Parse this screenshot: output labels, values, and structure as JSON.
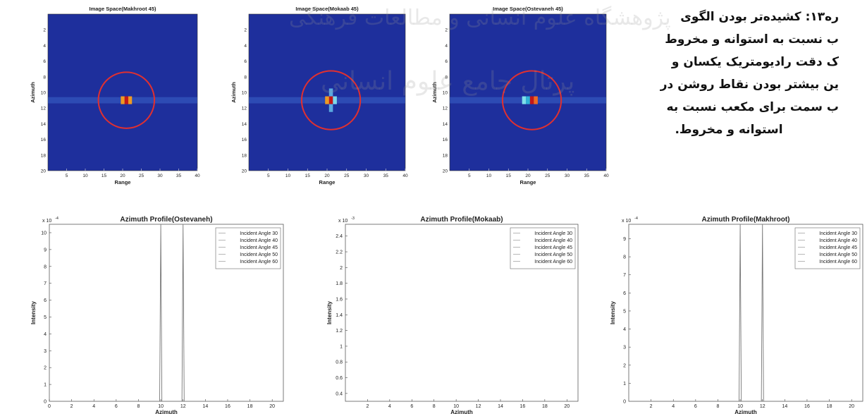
{
  "caption": {
    "lines": [
      "ره۱۳: کشیده‌تر بودن الگوی",
      "ب نسبت به استوانه و مخروط",
      "ک دقت رادیومتریک یکسان و",
      "ین بیشتر بودن نقاط روشن در",
      "ب سمت برای مکعب نسبت به",
      "استوانه و مخروط."
    ]
  },
  "watermark": {
    "top": "پژوهشگاه علوم انسانی و مطالعات فرهنگی",
    "middle": "پرتال جامع علوم انسانی"
  },
  "chart_data": [
    {
      "type": "heatmap",
      "title": "Image Space(Makhroot 45)",
      "xlabel": "Range",
      "ylabel": "Azimuth",
      "xlim": [
        0,
        40
      ],
      "ylim": [
        0,
        20
      ],
      "xticks": [
        "5",
        "10",
        "15",
        "20",
        "25",
        "30",
        "35",
        "40"
      ],
      "yticks": [
        "2",
        "4",
        "6",
        "8",
        "10",
        "12",
        "14",
        "16",
        "18",
        "20"
      ],
      "background_color": "#1e2f9c",
      "circle": {
        "cx": 21,
        "cy": 11,
        "r": 7.5,
        "color": "#e03030"
      },
      "cells": [
        {
          "x": 21,
          "y": 11,
          "color": "#c41717"
        },
        {
          "x": 20,
          "y": 11,
          "color": "#ef9a22"
        },
        {
          "x": 22,
          "y": 11,
          "color": "#ef9a22"
        }
      ]
    },
    {
      "type": "heatmap",
      "title": "Image Space(Mokaab 45)",
      "xlabel": "Range",
      "ylabel": "Azimuth",
      "xlim": [
        0,
        40
      ],
      "ylim": [
        0,
        20
      ],
      "xticks": [
        "5",
        "10",
        "15",
        "20",
        "25",
        "30",
        "35",
        "40"
      ],
      "yticks": [
        "2",
        "4",
        "6",
        "8",
        "10",
        "12",
        "14",
        "16",
        "18",
        "20"
      ],
      "background_color": "#1e2f9c",
      "circle": {
        "cx": 21,
        "cy": 11,
        "r": 7.5,
        "color": "#e03030"
      },
      "cells": [
        {
          "x": 21,
          "y": 11,
          "color": "#c41717"
        },
        {
          "x": 20,
          "y": 11,
          "color": "#ef9a22"
        },
        {
          "x": 22,
          "y": 11,
          "color": "#7fd9ea"
        },
        {
          "x": 21,
          "y": 10,
          "color": "#5aa8e0"
        },
        {
          "x": 21,
          "y": 12,
          "color": "#5aa8e0"
        }
      ]
    },
    {
      "type": "heatmap",
      "title": "Image Space(Ostevaneh 45)",
      "xlabel": "Range",
      "ylabel": "Azimuth",
      "xlim": [
        0,
        40
      ],
      "ylim": [
        0,
        20
      ],
      "xticks": [
        "5",
        "10",
        "15",
        "20",
        "25",
        "30",
        "35",
        "40"
      ],
      "yticks": [
        "2",
        "4",
        "6",
        "8",
        "10",
        "12",
        "14",
        "16",
        "18",
        "20"
      ],
      "background_color": "#1e2f9c",
      "circle": {
        "cx": 21,
        "cy": 11,
        "r": 7.5,
        "color": "#e03030"
      },
      "cells": [
        {
          "x": 21,
          "y": 11,
          "color": "#c41717"
        },
        {
          "x": 19,
          "y": 11,
          "color": "#7fe0ea"
        },
        {
          "x": 20,
          "y": 11,
          "color": "#2fb3d6"
        },
        {
          "x": 22,
          "y": 11,
          "color": "#ef6a22"
        }
      ]
    },
    {
      "type": "line",
      "title": "Azimuth Profile(Ostevaneh)",
      "xlabel": "Azimuth",
      "ylabel": "Intensity",
      "exponent": "x 10",
      "exponent_power": "-4",
      "xlim": [
        0,
        21
      ],
      "ylim": [
        0,
        10.5
      ],
      "xticks": [
        0,
        2,
        4,
        6,
        8,
        10,
        12,
        14,
        16,
        18,
        20
      ],
      "yticks": [
        0,
        1,
        2,
        3,
        4,
        5,
        6,
        7,
        8,
        9,
        10
      ],
      "legend": [
        "Incident Angle 30",
        "Incident Angle 40",
        "Incident Angle 45",
        "Incident Angle 50",
        "Incident Angle 60"
      ],
      "legend_position": "top-right",
      "series": [
        {
          "name": "Incident Angle 30",
          "x": [
            0,
            9.9,
            10,
            10.1,
            11.9,
            12,
            12.1,
            21
          ],
          "values": [
            0,
            0,
            10.5,
            0,
            0,
            10.5,
            0,
            0
          ]
        }
      ]
    },
    {
      "type": "line",
      "title": "Azimuth Profile(Mokaab)",
      "xlabel": "Azimuth",
      "ylabel": "Intensity",
      "exponent": "x 10",
      "exponent_power": "-3",
      "xlim": [
        0,
        21
      ],
      "ylim": [
        0.3,
        2.55
      ],
      "xticks": [
        2,
        4,
        6,
        8,
        10,
        12,
        14,
        16,
        18,
        20
      ],
      "yticks": [
        0.4,
        0.6,
        0.8,
        1,
        1.2,
        1.4,
        1.6,
        1.8,
        2,
        2.2,
        2.4
      ],
      "legend": [
        "Incident Angle 30",
        "Incident Angle 40",
        "Incident Angle 45",
        "Incident Angle 50",
        "Incident Angle 60"
      ],
      "legend_position": "top-right",
      "series": []
    },
    {
      "type": "line",
      "title": "Azimuth Profile(Makhroot)",
      "xlabel": "Azimuth",
      "ylabel": "Intensity",
      "exponent": "x 10",
      "exponent_power": "-4",
      "xlim": [
        0,
        21
      ],
      "ylim": [
        0,
        9.8
      ],
      "xticks": [
        2,
        4,
        6,
        8,
        10,
        12,
        14,
        16,
        18,
        20
      ],
      "yticks": [
        0,
        1,
        2,
        3,
        4,
        5,
        6,
        7,
        8,
        9
      ],
      "legend": [
        "Incident Angle 30",
        "Incident Angle 40",
        "Incident Angle 45",
        "Incident Angle 50",
        "Incident Angle 60"
      ],
      "legend_position": "top-right",
      "series": [
        {
          "name": "Incident Angle 30",
          "x": [
            0,
            9.9,
            10,
            10.1,
            11.9,
            12,
            12.1,
            21
          ],
          "values": [
            0,
            0,
            9.8,
            0,
            0,
            9.8,
            0,
            0
          ]
        }
      ]
    }
  ]
}
